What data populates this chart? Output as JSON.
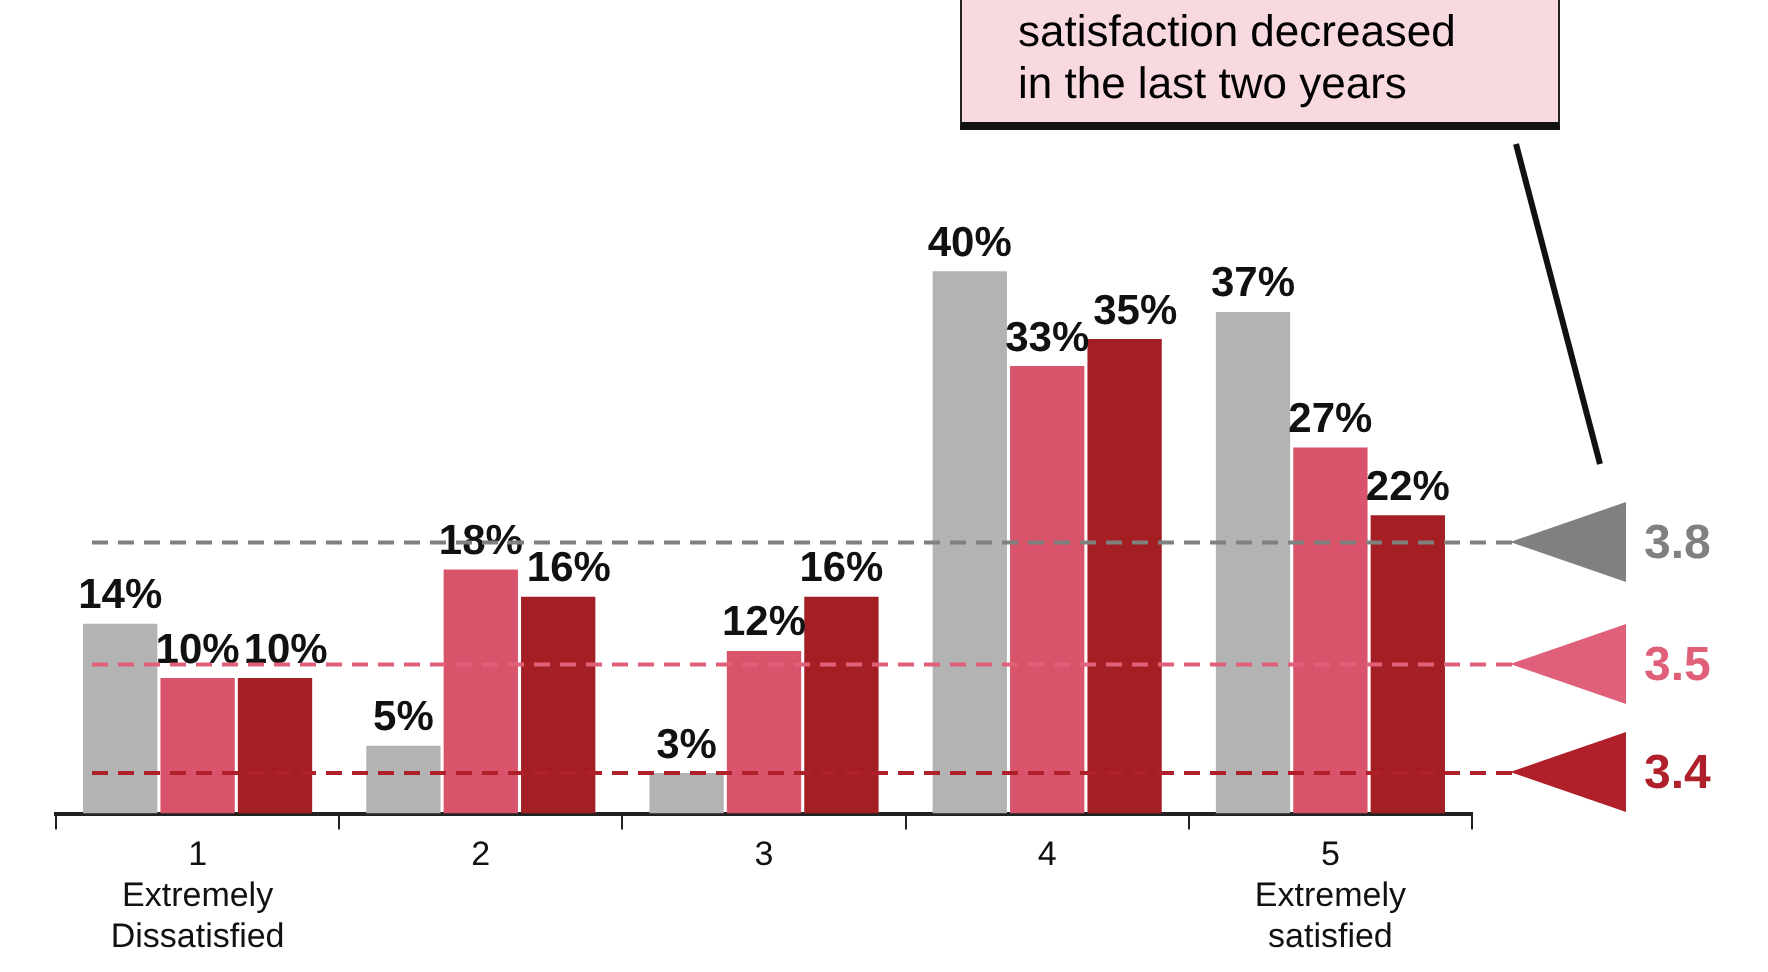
{
  "chart_data": {
    "type": "bar",
    "categories": [
      "1\nExtremely\nDissatisfied",
      "2",
      "3",
      "4",
      "5\nExtremely\nsatisfied"
    ],
    "series": [
      {
        "color": "#b3b3b3",
        "values": [
          14,
          5,
          3,
          40,
          37
        ],
        "value_labels": [
          "14%",
          "5%",
          "3%",
          "40%",
          "37%"
        ]
      },
      {
        "color": "#d9536a",
        "values": [
          10,
          18,
          12,
          33,
          27
        ],
        "value_labels": [
          "10%",
          "18%",
          "12%",
          "33%",
          "27%"
        ]
      },
      {
        "color": "#a31f24",
        "values": [
          10,
          16,
          16,
          35,
          22
        ],
        "value_labels": [
          "10%",
          "16%",
          "16%",
          "35%",
          "22%"
        ]
      }
    ],
    "grid": false,
    "legend": false,
    "tick_labels": "x",
    "ref_lines": [
      {
        "axis": "y",
        "value": 20,
        "color": "#808080",
        "line_style": "dashed"
      },
      {
        "axis": "y",
        "value": 11,
        "color": "#e0607a",
        "line_style": "dashed"
      },
      {
        "axis": "y",
        "value": 3,
        "color": "#b0202a",
        "line_style": "dashed"
      }
    ],
    "annotations": [
      "satisfaction decreased\nin the last two years",
      "3.8",
      "3.5",
      "3.4"
    ]
  }
}
